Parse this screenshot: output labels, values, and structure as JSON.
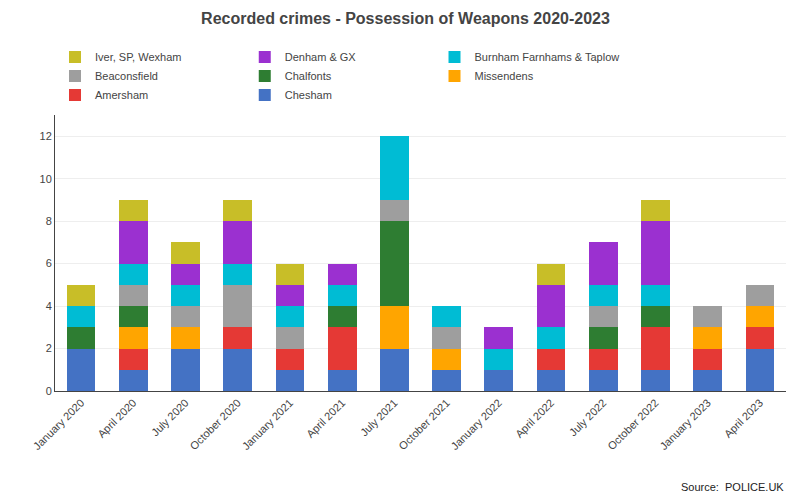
{
  "chart_data": {
    "type": "bar",
    "title": "Recorded crimes - Possession of Weapons 2020-2023",
    "annotations": [
      "Source:  POLICE.UK"
    ],
    "categories": [
      "January 2020",
      "April 2020",
      "July 2020",
      "October 2020",
      "January 2021",
      "April 2021",
      "July 2021",
      "October 2021",
      "January 2022",
      "April 2022",
      "July 2022",
      "October 2022",
      "January 2023",
      "April 2023"
    ],
    "series": [
      {
        "name": "Chesham",
        "color": "#4472c4",
        "values": [
          2,
          1,
          2,
          2,
          1,
          1,
          2,
          1,
          1,
          1,
          1,
          1,
          1,
          2
        ]
      },
      {
        "name": "Amersham",
        "color": "#e53935",
        "values": [
          0,
          1,
          0,
          1,
          1,
          2,
          0,
          0,
          0,
          1,
          1,
          2,
          1,
          1
        ]
      },
      {
        "name": "Missendens",
        "color": "#ffa500",
        "values": [
          0,
          1,
          1,
          0,
          0,
          0,
          2,
          1,
          0,
          0,
          0,
          0,
          1,
          1
        ]
      },
      {
        "name": "Chalfonts",
        "color": "#2e7d32",
        "values": [
          1,
          1,
          0,
          0,
          0,
          1,
          4,
          0,
          0,
          0,
          1,
          1,
          0,
          0
        ]
      },
      {
        "name": "Beaconsfield",
        "color": "#9e9e9e",
        "values": [
          0,
          1,
          1,
          2,
          1,
          0,
          1,
          1,
          0,
          0,
          1,
          0,
          1,
          1
        ]
      },
      {
        "name": "Burnham Farnhams & Taplow",
        "color": "#00bcd4",
        "values": [
          1,
          1,
          1,
          1,
          1,
          1,
          3,
          1,
          1,
          1,
          1,
          1,
          0,
          0
        ]
      },
      {
        "name": "Denham & GX",
        "color": "#9b30d0",
        "values": [
          0,
          2,
          1,
          2,
          1,
          1,
          0,
          0,
          1,
          2,
          2,
          3,
          0,
          0
        ]
      },
      {
        "name": "Iver, SP, Wexham",
        "color": "#c8be28",
        "values": [
          1,
          1,
          1,
          1,
          1,
          0,
          0,
          0,
          0,
          1,
          0,
          1,
          0,
          0
        ]
      }
    ],
    "stacked": true,
    "ylim": [
      0,
      13
    ],
    "yticks": [
      0,
      2,
      4,
      6,
      8,
      10,
      12
    ],
    "grid": true,
    "legend": "top"
  }
}
